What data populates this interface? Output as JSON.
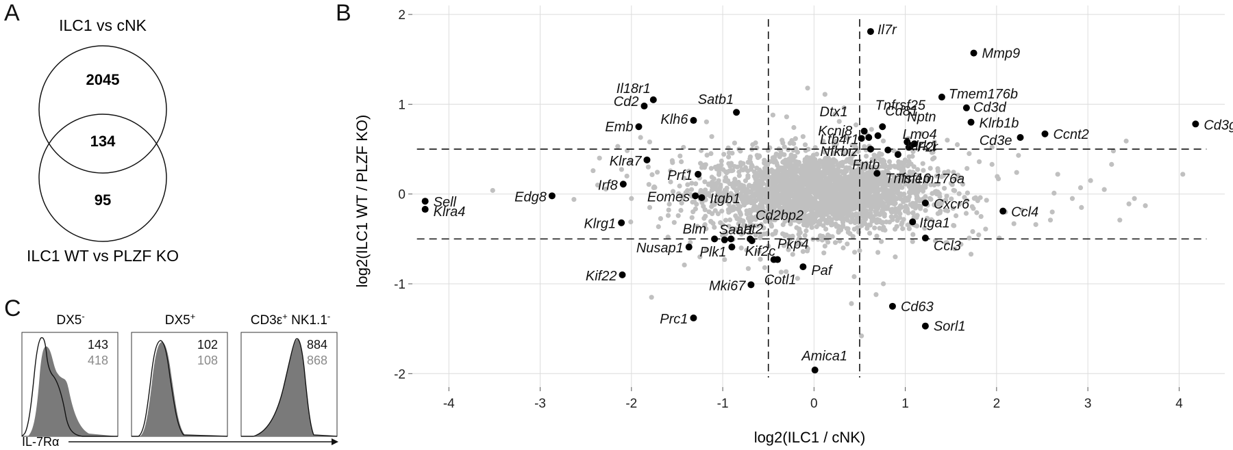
{
  "panels": {
    "a": "A",
    "b": "B",
    "c": "C"
  },
  "venn": {
    "top_label": "ILC1 vs cNK",
    "bottom_label": "ILC1 WT vs PLZF KO",
    "top_only": "2045",
    "overlap": "134",
    "bottom_only": "95"
  },
  "histograms": {
    "axis_label": "IL-7Rα",
    "panels": [
      {
        "title": "DX5",
        "sup": "-",
        "value_black": "143",
        "value_gray": "418"
      },
      {
        "title": "DX5",
        "sup": "+",
        "value_black": "102",
        "value_gray": "108"
      },
      {
        "title": "CD3ε",
        "sup": "+",
        "title_suffix": " NK1.1",
        "sup2": "-",
        "value_black": "884",
        "value_gray": "868"
      }
    ]
  },
  "chart_data": {
    "type": "scatter",
    "xlabel": "log2(ILC1 / cNK)",
    "ylabel": "log2(ILC1 WT / PLZF KO)",
    "xlim": [
      -4.4,
      4.5
    ],
    "ylim": [
      -2.15,
      2.1
    ],
    "xticks": [
      -4,
      -3,
      -2,
      -1,
      0,
      1,
      2,
      3,
      4
    ],
    "yticks": [
      -2,
      -1,
      0,
      1,
      2
    ],
    "xtick_labels": [
      "-4",
      "-3",
      "-2",
      "-1",
      "0",
      "1",
      "2",
      "3",
      "4"
    ],
    "ytick_labels": [
      "-2",
      "-1",
      "0",
      "1",
      "2"
    ],
    "thresholds": {
      "x": [
        -0.5,
        0.5
      ],
      "y": [
        -0.5,
        0.5
      ]
    },
    "grid": true,
    "background_color": "#c0c0c0",
    "highlight_color": "#000000",
    "labeled_genes": [
      {
        "label": "Il7r",
        "x": 0.62,
        "y": 1.81
      },
      {
        "label": "Mmp9",
        "x": 1.75,
        "y": 1.57
      },
      {
        "label": "Il18r1",
        "x": -1.76,
        "y": 1.05
      },
      {
        "label": "Cd2",
        "x": -1.86,
        "y": 0.98
      },
      {
        "label": "Satb1",
        "x": -0.85,
        "y": 0.91
      },
      {
        "label": "Klh6",
        "x": -1.32,
        "y": 0.82
      },
      {
        "label": "Emb",
        "x": -1.92,
        "y": 0.75
      },
      {
        "label": "Dtx1",
        "x": 0.55,
        "y": 0.7
      },
      {
        "label": "Tnfrsf25",
        "x": 0.7,
        "y": 0.65
      },
      {
        "label": "Kcnj8",
        "x": 0.6,
        "y": 0.63
      },
      {
        "label": "Cd81",
        "x": 0.75,
        "y": 0.75
      },
      {
        "label": "Ltb4r1",
        "x": 0.52,
        "y": 0.62
      },
      {
        "label": "Nfkbiz",
        "x": 0.62,
        "y": 0.5
      },
      {
        "label": "Nptn",
        "x": 1.02,
        "y": 0.58
      },
      {
        "label": "Lmo4",
        "x": 1.06,
        "y": 0.54
      },
      {
        "label": "Klrk1",
        "x": 1.1,
        "y": 0.56
      },
      {
        "label": "F2r",
        "x": 1.04,
        "y": 0.52
      },
      {
        "label": "Fntb",
        "x": 0.81,
        "y": 0.49
      },
      {
        "label": "Tmem176b",
        "x": 1.4,
        "y": 1.08
      },
      {
        "label": "Cd3d",
        "x": 1.67,
        "y": 0.96
      },
      {
        "label": "Klrb1b",
        "x": 1.72,
        "y": 0.8
      },
      {
        "label": "Ccnt2",
        "x": 2.53,
        "y": 0.67
      },
      {
        "label": "Cd3e",
        "x": 2.26,
        "y": 0.63
      },
      {
        "label": "Cd3g",
        "x": 4.18,
        "y": 0.78
      },
      {
        "label": "Klra7",
        "x": -1.83,
        "y": 0.38
      },
      {
        "label": "Tmem176a",
        "x": 0.92,
        "y": 0.44
      },
      {
        "label": "Tnfsf10",
        "x": 0.69,
        "y": 0.23
      },
      {
        "label": "Prf1",
        "x": -1.27,
        "y": 0.22
      },
      {
        "label": "Irf8",
        "x": -2.09,
        "y": 0.11
      },
      {
        "label": "Sell",
        "x": -4.26,
        "y": -0.08
      },
      {
        "label": "Klra4",
        "x": -4.26,
        "y": -0.17
      },
      {
        "label": "Edg8",
        "x": -2.87,
        "y": -0.02
      },
      {
        "label": "Eomes",
        "x": -1.3,
        "y": -0.02
      },
      {
        "label": "Itgb1",
        "x": -1.23,
        "y": -0.04
      },
      {
        "label": "Cxcr6",
        "x": 1.22,
        "y": -0.1
      },
      {
        "label": "Ccl4",
        "x": 2.07,
        "y": -0.19
      },
      {
        "label": "Cd2bp2",
        "x": -0.7,
        "y": -0.5
      },
      {
        "label": "Itga1",
        "x": 1.08,
        "y": -0.31
      },
      {
        "label": "Klrg1",
        "x": -2.11,
        "y": -0.32
      },
      {
        "label": "Blm",
        "x": -1.09,
        "y": -0.5
      },
      {
        "label": "Saal1",
        "x": -0.98,
        "y": -0.51
      },
      {
        "label": "Lat2",
        "x": -0.91,
        "y": -0.5
      },
      {
        "label": "Nusap1",
        "x": -1.37,
        "y": -0.59
      },
      {
        "label": "Plk1",
        "x": -0.9,
        "y": -0.59
      },
      {
        "label": "Kif2c",
        "x": -0.68,
        "y": -0.52
      },
      {
        "label": "Pkp4",
        "x": -0.4,
        "y": -0.73
      },
      {
        "label": "Ccl3",
        "x": 1.22,
        "y": -0.49
      },
      {
        "label": "Cotl1",
        "x": -0.44,
        "y": -0.73
      },
      {
        "label": "Paf",
        "x": -0.12,
        "y": -0.81
      },
      {
        "label": "Kif22",
        "x": -2.1,
        "y": -0.9
      },
      {
        "label": "Mki67",
        "x": -0.69,
        "y": -1.01
      },
      {
        "label": "Cd63",
        "x": 0.86,
        "y": -1.25
      },
      {
        "label": "Sorl1",
        "x": 1.22,
        "y": -1.47
      },
      {
        "label": "Prc1",
        "x": -1.32,
        "y": -1.38
      },
      {
        "label": "Amica1",
        "x": 0.01,
        "y": -1.96
      }
    ],
    "outlier_points": [
      [
        -3.52,
        0.04
      ],
      [
        -2.42,
        0.26
      ],
      [
        -2.37,
        0.1
      ],
      [
        -2.35,
        0.4
      ],
      [
        -2.63,
        -0.06
      ],
      [
        -2.15,
        0.53
      ],
      [
        -2.05,
        0.2
      ],
      [
        -2.0,
        -0.05
      ],
      [
        -2.01,
        0.36
      ],
      [
        -1.9,
        0.63
      ],
      [
        -1.8,
        -0.15
      ],
      [
        -1.75,
        0.08
      ],
      [
        -1.8,
        0.58
      ],
      [
        -1.55,
        0.35
      ],
      [
        -1.6,
        -0.48
      ],
      [
        -1.45,
        -0.1
      ],
      [
        -1.43,
        0.52
      ],
      [
        -1.78,
        -1.15
      ],
      [
        -1.42,
        -0.79
      ],
      [
        -1.25,
        -0.7
      ],
      [
        -1.12,
        0.64
      ],
      [
        -1.18,
        -0.62
      ],
      [
        -0.98,
        -0.73
      ],
      [
        -0.72,
        -0.83
      ],
      [
        -0.54,
        -0.82
      ],
      [
        -0.36,
        -0.87
      ],
      [
        -0.18,
        -0.94
      ],
      [
        -0.07,
        1.18
      ],
      [
        0.12,
        1.11
      ],
      [
        -0.45,
        0.88
      ],
      [
        -0.3,
        0.86
      ],
      [
        0.33,
        0.96
      ],
      [
        0.23,
        0.89
      ],
      [
        0.63,
        0.72
      ],
      [
        0.46,
        0.77
      ],
      [
        0.44,
        -0.92
      ],
      [
        0.52,
        -1.58
      ],
      [
        0.41,
        -1.22
      ],
      [
        0.68,
        -1.12
      ],
      [
        0.76,
        -1.0
      ],
      [
        1.33,
        -0.52
      ],
      [
        1.54,
        -0.61
      ],
      [
        1.61,
        -0.56
      ],
      [
        1.72,
        -0.67
      ],
      [
        1.7,
        -0.49
      ],
      [
        1.88,
        -0.39
      ],
      [
        1.83,
        -0.25
      ],
      [
        2.03,
        -0.49
      ],
      [
        2.19,
        -0.33
      ],
      [
        2.28,
        -0.18
      ],
      [
        2.43,
        -0.34
      ],
      [
        2.59,
        -0.29
      ],
      [
        2.61,
        -0.2
      ],
      [
        2.63,
        0.01
      ],
      [
        2.67,
        0.22
      ],
      [
        2.83,
        -0.05
      ],
      [
        2.92,
        0.07
      ],
      [
        2.93,
        -0.15
      ],
      [
        3.03,
        0.15
      ],
      [
        3.18,
        0.05
      ],
      [
        3.26,
        0.33
      ],
      [
        3.35,
        -0.29
      ],
      [
        3.42,
        0.59
      ],
      [
        3.28,
        0.48
      ],
      [
        3.45,
        -0.11
      ],
      [
        3.63,
        -0.13
      ],
      [
        3.51,
        -0.05
      ],
      [
        4.04,
        0.22
      ],
      [
        2.24,
        0.43
      ],
      [
        2.22,
        0.24
      ],
      [
        1.95,
        0.33
      ],
      [
        1.81,
        0.36
      ],
      [
        1.95,
        0.52
      ],
      [
        2.02,
        0.17
      ],
      [
        1.7,
        0.45
      ],
      [
        1.57,
        0.55
      ],
      [
        1.46,
        0.6
      ],
      [
        1.32,
        0.58
      ],
      [
        1.18,
        0.67
      ],
      [
        1.3,
        0.39
      ],
      [
        1.47,
        0.25
      ],
      [
        1.63,
        0.11
      ],
      [
        1.44,
        -0.18
      ],
      [
        1.24,
        -0.27
      ],
      [
        1.08,
        -0.53
      ],
      [
        0.89,
        -0.7
      ],
      [
        0.7,
        -0.65
      ],
      [
        0.5,
        -0.63
      ],
      [
        0.32,
        -0.6
      ],
      [
        0.12,
        -0.58
      ],
      [
        -0.12,
        -0.64
      ],
      [
        -0.28,
        -0.62
      ],
      [
        -0.5,
        -0.58
      ],
      [
        -0.76,
        -0.35
      ],
      [
        -0.9,
        -0.18
      ],
      [
        -1.05,
        -0.22
      ],
      [
        -1.2,
        -0.35
      ],
      [
        -1.34,
        0.12
      ],
      [
        -1.08,
        0.3
      ],
      [
        -0.93,
        0.46
      ],
      [
        -0.64,
        0.57
      ],
      [
        -0.35,
        0.6
      ],
      [
        -0.12,
        0.64
      ],
      [
        0.1,
        0.59
      ],
      [
        0.37,
        0.62
      ]
    ]
  }
}
